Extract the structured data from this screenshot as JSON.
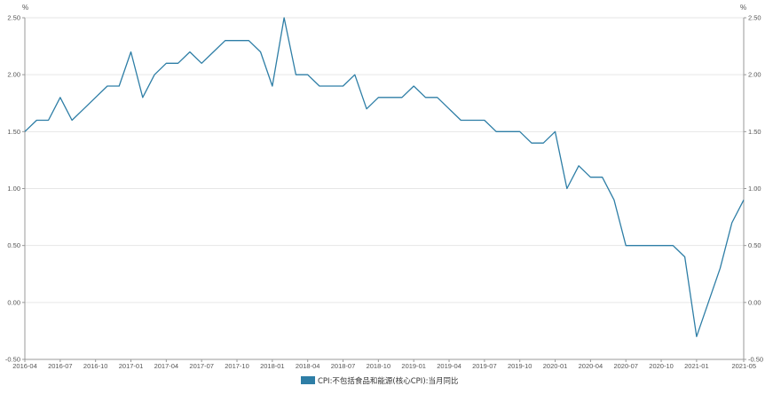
{
  "chart_data": {
    "type": "line",
    "y_unit_left": "%",
    "y_unit_right": "%",
    "ylim": [
      -0.5,
      2.5
    ],
    "yticks": [
      "2.50",
      "2.00",
      "1.50",
      "1.00",
      "0.50",
      "0.00",
      "-0.50"
    ],
    "yticks_right": [
      "2.50",
      "2.00",
      "1.50",
      "1.00",
      "0.50",
      "0.00",
      "-0.50"
    ],
    "xticks": [
      "2016-04",
      "2016-07",
      "2016-10",
      "2017-01",
      "2017-04",
      "2017-07",
      "2017-10",
      "2018-01",
      "2018-04",
      "2018-07",
      "2018-10",
      "2019-01",
      "2019-04",
      "2019-07",
      "2019-10",
      "2020-01",
      "2020-04",
      "2020-07",
      "2020-10",
      "2021-01",
      "2021-05"
    ],
    "grid": true,
    "legend_position": "bottom-center",
    "series": [
      {
        "name": "CPI:不包括食品和能源(核心CPI):当月同比",
        "color": "#2e7ea6",
        "x": [
          "2016-04",
          "2016-05",
          "2016-06",
          "2016-07",
          "2016-08",
          "2016-09",
          "2016-10",
          "2016-11",
          "2016-12",
          "2017-01",
          "2017-02",
          "2017-03",
          "2017-04",
          "2017-05",
          "2017-06",
          "2017-07",
          "2017-08",
          "2017-09",
          "2017-10",
          "2017-11",
          "2017-12",
          "2018-01",
          "2018-02",
          "2018-03",
          "2018-04",
          "2018-05",
          "2018-06",
          "2018-07",
          "2018-08",
          "2018-09",
          "2018-10",
          "2018-11",
          "2018-12",
          "2019-01",
          "2019-02",
          "2019-03",
          "2019-04",
          "2019-05",
          "2019-06",
          "2019-07",
          "2019-08",
          "2019-09",
          "2019-10",
          "2019-11",
          "2019-12",
          "2020-01",
          "2020-02",
          "2020-03",
          "2020-04",
          "2020-05",
          "2020-06",
          "2020-07",
          "2020-08",
          "2020-09",
          "2020-10",
          "2020-11",
          "2020-12",
          "2021-01",
          "2021-02",
          "2021-03",
          "2021-04",
          "2021-05"
        ],
        "values": [
          1.5,
          1.6,
          1.6,
          1.8,
          1.6,
          1.7,
          1.8,
          1.9,
          1.9,
          2.2,
          1.8,
          2.0,
          2.1,
          2.1,
          2.2,
          2.1,
          2.2,
          2.3,
          2.3,
          2.3,
          2.2,
          1.9,
          2.5,
          2.0,
          2.0,
          1.9,
          1.9,
          1.9,
          2.0,
          1.7,
          1.8,
          1.8,
          1.8,
          1.9,
          1.8,
          1.8,
          1.7,
          1.6,
          1.6,
          1.6,
          1.5,
          1.5,
          1.5,
          1.4,
          1.4,
          1.5,
          1.0,
          1.2,
          1.1,
          1.1,
          0.9,
          0.5,
          0.5,
          0.5,
          0.5,
          0.5,
          0.4,
          -0.3,
          0.0,
          0.3,
          0.7,
          0.9
        ]
      }
    ]
  }
}
